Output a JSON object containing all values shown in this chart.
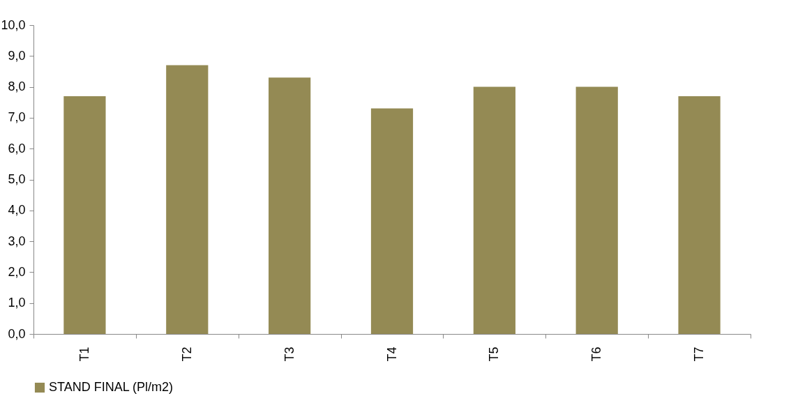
{
  "chart_data": {
    "type": "bar",
    "categories": [
      "T1",
      "T2",
      "T3",
      "T4",
      "T5",
      "T6",
      "T7"
    ],
    "series": [
      {
        "name": "STAND FINAL (Pl/m2)",
        "color": "#948a54",
        "values": [
          7.7,
          8.7,
          8.3,
          7.3,
          8.0,
          8.0,
          7.7
        ]
      }
    ],
    "ylim": [
      0,
      10
    ],
    "yticks": [
      {
        "value": 0,
        "label": "0,0"
      },
      {
        "value": 1,
        "label": "1,0"
      },
      {
        "value": 2,
        "label": "2,0"
      },
      {
        "value": 3,
        "label": "3,0"
      },
      {
        "value": 4,
        "label": "4,0"
      },
      {
        "value": 5,
        "label": "5,0"
      },
      {
        "value": 6,
        "label": "6,0"
      },
      {
        "value": 7,
        "label": "7,0"
      },
      {
        "value": 8,
        "label": "8,0"
      },
      {
        "value": 9,
        "label": "9,0"
      },
      {
        "value": 10,
        "label": "10,0"
      }
    ],
    "grid": false,
    "legend": "bottom"
  }
}
